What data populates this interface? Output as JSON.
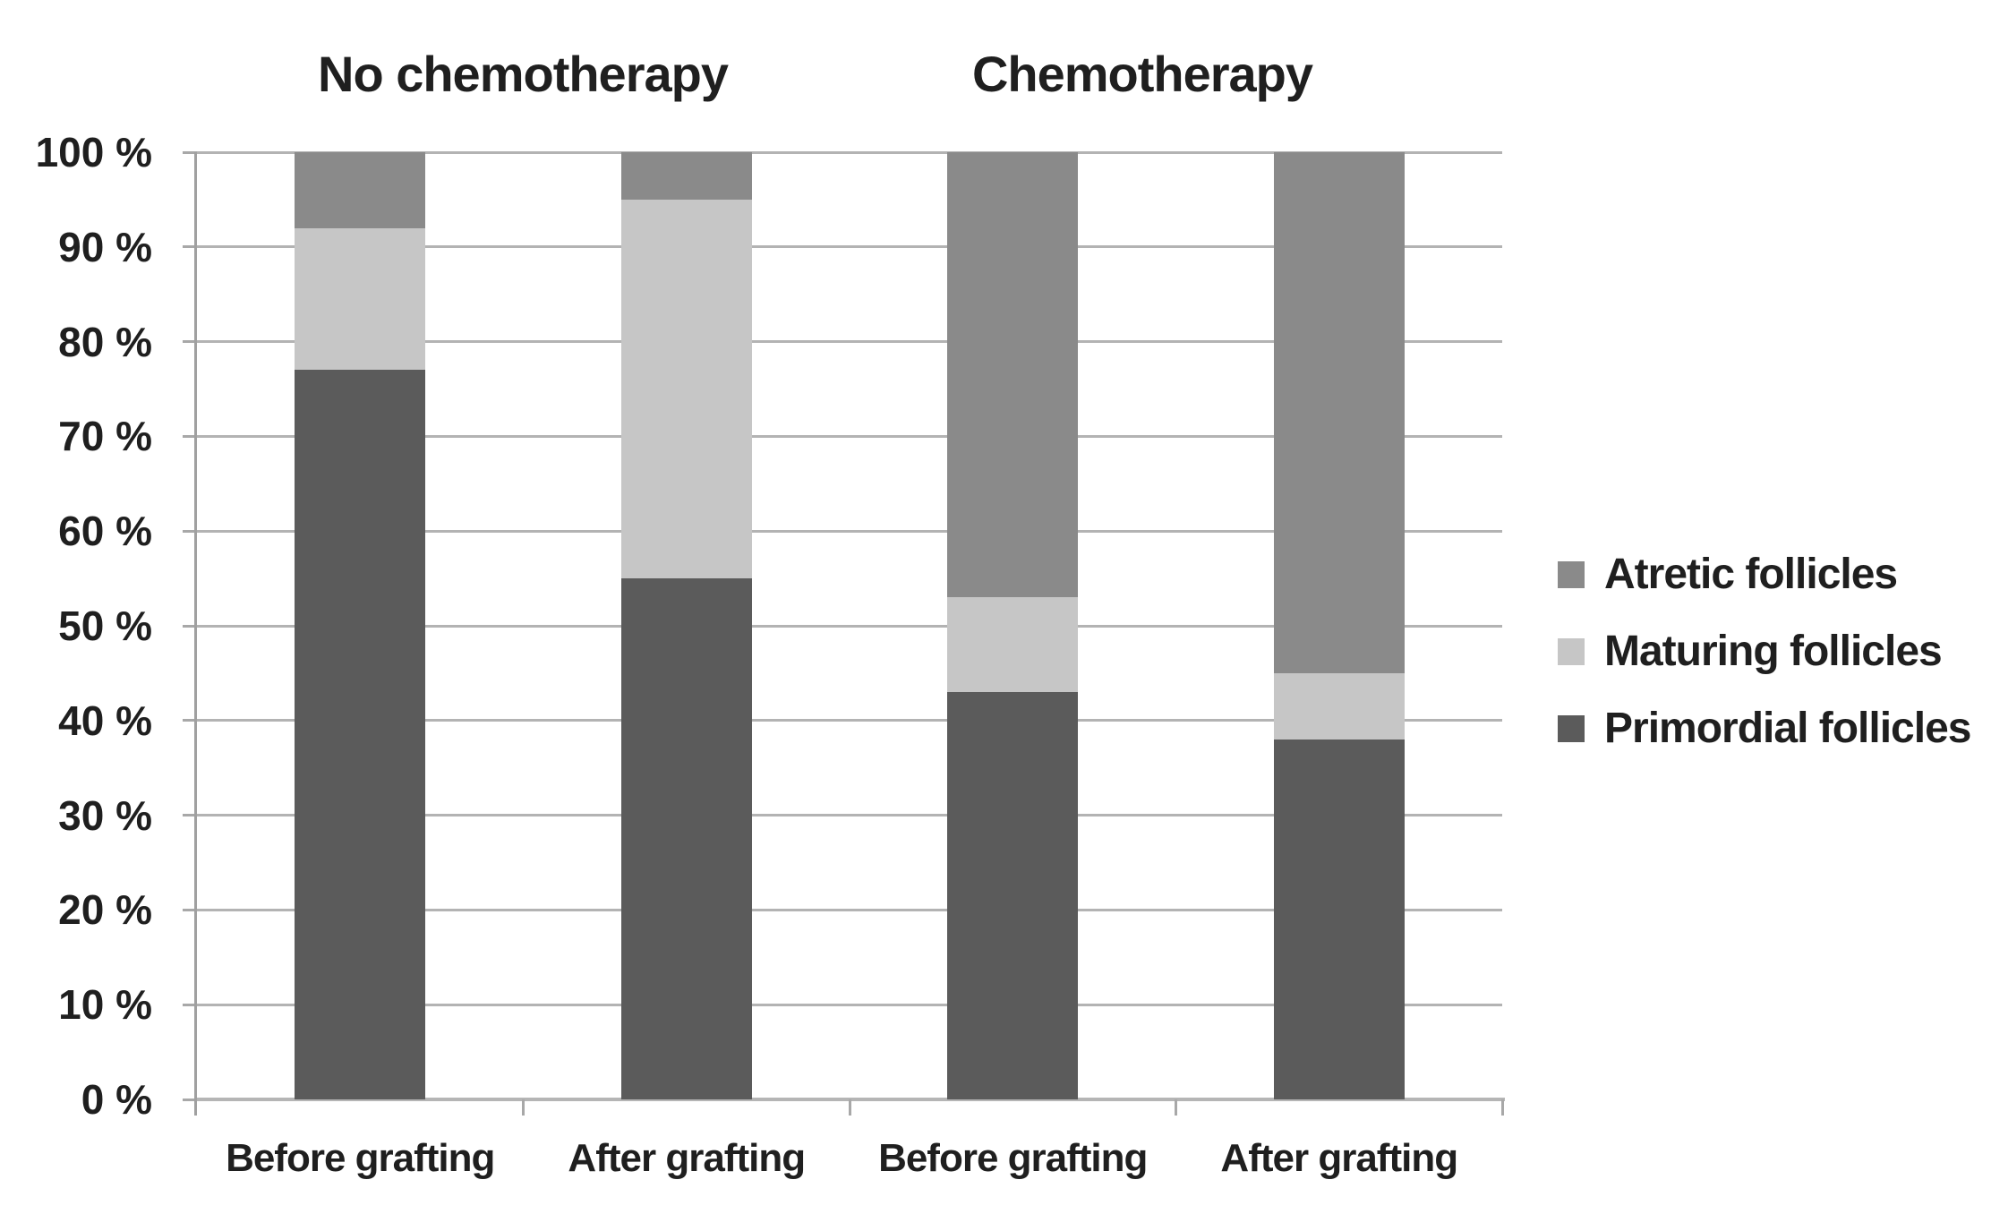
{
  "chart_data": {
    "type": "bar",
    "stacked": true,
    "orientation": "vertical",
    "group_titles": [
      {
        "label": "No chemotherapy"
      },
      {
        "label": "Chemotherapy"
      }
    ],
    "categories": [
      "Before grafting",
      "After grafting",
      "Before grafting",
      "After grafting"
    ],
    "series": [
      {
        "name": "Primordial follicles",
        "color": "#5b5b5b",
        "values": [
          77,
          55,
          43,
          38
        ]
      },
      {
        "name": "Maturing follicles",
        "color": "#c6c6c6",
        "values": [
          15,
          40,
          10,
          7
        ]
      },
      {
        "name": "Atretic follicles",
        "color": "#8a8a8a",
        "values": [
          8,
          5,
          47,
          55
        ]
      }
    ],
    "legend_order": [
      "Atretic follicles",
      "Maturing follicles",
      "Primordial follicles"
    ],
    "legend_position": "right",
    "ylim": [
      0,
      100
    ],
    "y_ticks": [
      "0 %",
      "10 %",
      "20 %",
      "30 %",
      "40 %",
      "50 %",
      "60 %",
      "70 %",
      "80 %",
      "90 %",
      "100 %"
    ],
    "xlabel": "",
    "ylabel": "",
    "grid": true
  },
  "colors": {
    "background": "#ffffff",
    "gridline": "#b3b3b3",
    "axis": "#a0a0a0",
    "text": "#1f1f1f"
  }
}
